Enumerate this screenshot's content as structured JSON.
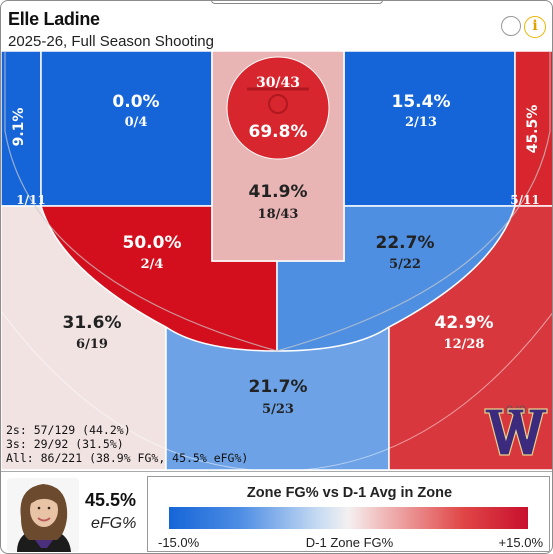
{
  "header": {
    "player_name": "Elle Ladine",
    "subtitle": "2025-26, Full Season Shooting"
  },
  "zones": {
    "left_corner": {
      "pct": "9.1%",
      "frac": "1/11",
      "color": "#1565d8"
    },
    "left_wing_three": {
      "pct": "0.0%",
      "frac": "0/4",
      "color": "#1565d8"
    },
    "right_wing_three": {
      "pct": "15.4%",
      "frac": "2/13",
      "color": "#1565d8"
    },
    "right_corner": {
      "pct": "45.5%",
      "frac": "5/11",
      "color": "#d7262e"
    },
    "rim": {
      "pct": "69.8%",
      "frac": "30/43",
      "color": "#d7262e"
    },
    "paint": {
      "pct": "41.9%",
      "frac": "18/43",
      "color": "#e8b4b4"
    },
    "left_mid": {
      "pct": "50.0%",
      "frac": "2/4",
      "color": "#d30f1e"
    },
    "right_mid": {
      "pct": "22.7%",
      "frac": "5/22",
      "color": "#4f8fe2"
    },
    "left_wing_deep": {
      "pct": "31.6%",
      "frac": "6/19",
      "color": "#f2e3e3"
    },
    "top_key": {
      "pct": "21.7%",
      "frac": "5/23",
      "color": "#6da2e6"
    },
    "right_wing_deep": {
      "pct": "42.9%",
      "frac": "12/28",
      "color": "#d8373e"
    }
  },
  "totals": {
    "twos": "2s: 57/129 (44.2%)",
    "threes": "3s: 29/92 (31.5%)",
    "all": "All: 86/221 (38.9% FG%, 45.5% eFG%)"
  },
  "logo_overlay": "0/0",
  "footer": {
    "efg_value": "45.5%",
    "efg_label": "eFG%",
    "legend_title": "Zone FG% vs D-1 Avg in Zone",
    "legend_min": "-15.0%",
    "legend_center": "D-1 Zone FG%",
    "legend_max": "+15.0%"
  },
  "icons": {
    "toggle": "circle-icon",
    "info": "info-icon",
    "team_logo": "washington-w-logo"
  }
}
